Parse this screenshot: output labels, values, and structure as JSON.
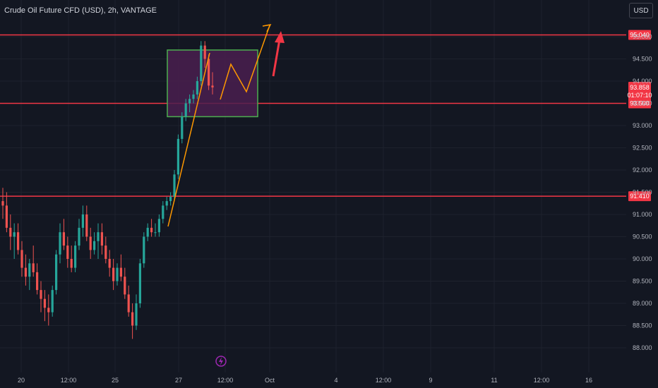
{
  "header": {
    "title": "Crude Oil Future CFD (USD), 2h, VANTAGE",
    "currency_button": "USD"
  },
  "colors": {
    "background": "#131722",
    "up": "#26a69a",
    "down": "#ef5350",
    "level": "#f23645",
    "projection": "#ff9800",
    "zone_fill": "#4a1f4f",
    "zone_border": "#4caf50",
    "grid": "#1e222d"
  },
  "events_icon": "lightning-icon",
  "chart_data": {
    "type": "candlestick",
    "title": "Crude Oil Future CFD (USD), 2h, VANTAGE",
    "y_ticks": [
      "95.000",
      "94.500",
      "94.000",
      "93.500",
      "93.000",
      "92.500",
      "92.000",
      "91.500",
      "91.000",
      "90.500",
      "90.000",
      "89.500",
      "89.000",
      "88.500",
      "88.000"
    ],
    "ylim": [
      88.0,
      95.0
    ],
    "x_ticks": [
      "20",
      "12:00",
      "25",
      "27",
      "12:00",
      "Oct",
      "4",
      "12:00",
      "9",
      "11",
      "12:00",
      "16"
    ],
    "levels": [
      {
        "label": "95.040",
        "value": 95.04
      },
      {
        "label": "93.500",
        "value": 93.5
      },
      {
        "label": "91.410",
        "value": 91.41
      }
    ],
    "last_price": {
      "label": "93.858",
      "value": 93.858,
      "countdown": "01:07:10"
    },
    "candles": [
      [
        91.3,
        91.6,
        90.9,
        91.2
      ],
      [
        91.2,
        91.5,
        90.6,
        90.7
      ],
      [
        90.7,
        91.0,
        90.2,
        90.5
      ],
      [
        90.5,
        90.8,
        90.0,
        90.6
      ],
      [
        90.6,
        90.8,
        90.1,
        90.2
      ],
      [
        90.2,
        90.4,
        89.6,
        89.8
      ],
      [
        89.8,
        90.1,
        89.4,
        89.6
      ],
      [
        89.6,
        90.0,
        89.3,
        89.9
      ],
      [
        89.9,
        90.3,
        89.6,
        89.7
      ],
      [
        89.7,
        89.9,
        89.2,
        89.3
      ],
      [
        89.3,
        89.5,
        88.8,
        89.1
      ],
      [
        89.1,
        89.3,
        88.6,
        88.9
      ],
      [
        88.9,
        89.2,
        88.5,
        88.8
      ],
      [
        88.8,
        89.4,
        88.7,
        89.3
      ],
      [
        89.3,
        90.2,
        89.2,
        90.1
      ],
      [
        90.1,
        90.8,
        89.9,
        90.6
      ],
      [
        90.6,
        90.9,
        90.2,
        90.3
      ],
      [
        90.3,
        90.5,
        89.8,
        90.0
      ],
      [
        90.0,
        90.3,
        89.7,
        89.8
      ],
      [
        89.8,
        90.4,
        89.7,
        90.3
      ],
      [
        90.3,
        90.9,
        90.2,
        90.7
      ],
      [
        90.7,
        91.2,
        90.5,
        91.0
      ],
      [
        91.0,
        91.2,
        90.4,
        90.5
      ],
      [
        90.5,
        90.7,
        90.0,
        90.2
      ],
      [
        90.2,
        90.6,
        90.1,
        90.4
      ],
      [
        90.4,
        90.8,
        90.0,
        90.6
      ],
      [
        90.6,
        90.8,
        90.1,
        90.3
      ],
      [
        90.3,
        90.5,
        89.9,
        90.0
      ],
      [
        90.0,
        90.2,
        89.6,
        89.8
      ],
      [
        89.8,
        90.0,
        89.3,
        89.5
      ],
      [
        89.5,
        89.9,
        89.4,
        89.8
      ],
      [
        89.8,
        90.1,
        89.5,
        89.6
      ],
      [
        89.6,
        89.8,
        89.1,
        89.2
      ],
      [
        89.2,
        89.4,
        88.7,
        88.8
      ],
      [
        88.8,
        89.0,
        88.2,
        88.5
      ],
      [
        88.5,
        89.2,
        88.4,
        89.0
      ],
      [
        89.0,
        90.0,
        88.9,
        89.9
      ],
      [
        89.9,
        90.6,
        89.8,
        90.5
      ],
      [
        90.5,
        90.8,
        90.4,
        90.7
      ],
      [
        90.7,
        90.9,
        90.5,
        90.6
      ],
      [
        90.6,
        90.8,
        90.5,
        90.6
      ],
      [
        90.6,
        91.0,
        90.5,
        90.9
      ],
      [
        90.9,
        91.3,
        90.8,
        91.2
      ],
      [
        91.2,
        91.4,
        91.1,
        91.3
      ],
      [
        91.3,
        91.5,
        91.2,
        91.4
      ],
      [
        91.4,
        92.0,
        91.3,
        91.9
      ],
      [
        91.9,
        92.8,
        91.8,
        92.7
      ],
      [
        92.7,
        93.3,
        92.6,
        93.2
      ],
      [
        93.2,
        93.6,
        93.1,
        93.5
      ],
      [
        93.5,
        93.7,
        93.3,
        93.6
      ],
      [
        93.6,
        93.8,
        93.5,
        93.7
      ],
      [
        93.7,
        94.1,
        93.6,
        94.0
      ],
      [
        94.0,
        94.9,
        93.9,
        94.8
      ],
      [
        94.8,
        94.9,
        94.3,
        94.5
      ],
      [
        94.5,
        94.6,
        93.8,
        93.9
      ],
      [
        93.9,
        94.2,
        93.7,
        93.858
      ]
    ]
  }
}
